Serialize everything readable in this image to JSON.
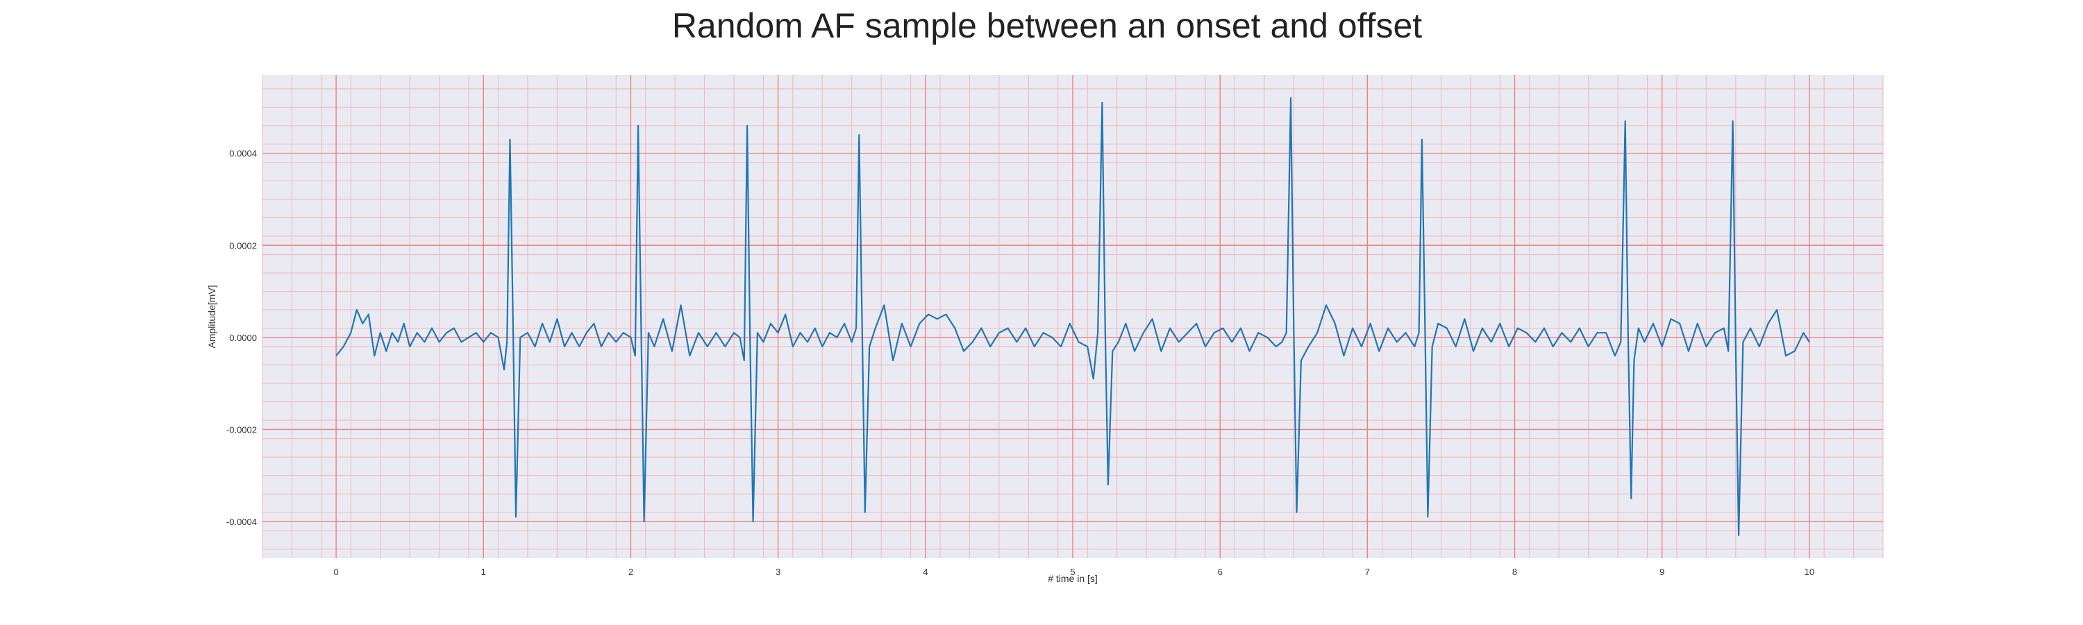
{
  "chart_data": {
    "type": "line",
    "title": "Random AF sample between an onset and offset",
    "xlabel": "# time in [s]",
    "ylabel": "Amplitude[mV]",
    "xlim": [
      -0.5,
      10.5
    ],
    "ylim": [
      -0.00048,
      0.00057
    ],
    "x_ticks": [
      0,
      1,
      2,
      3,
      4,
      5,
      6,
      7,
      8,
      9,
      10
    ],
    "x_tick_labels": [
      "0",
      "1",
      "2",
      "3",
      "4",
      "5",
      "6",
      "7",
      "8",
      "9",
      "10"
    ],
    "y_ticks": [
      0.0004,
      0.0002,
      0.0,
      -0.0002,
      -0.0004
    ],
    "y_tick_labels": [
      "0.0004",
      "0.0002",
      "0.0000",
      "-0.0002",
      "-0.0004"
    ],
    "grid": true,
    "legend": "none",
    "colors": {
      "line": "#1f77b4",
      "plot_background": "#eaeaf2",
      "major_grid": "#f08080",
      "minor_grid": "#f4b6bd"
    },
    "series": [
      {
        "x": [
          0.0,
          0.05,
          0.1,
          0.14,
          0.18,
          0.22,
          0.26,
          0.3,
          0.34,
          0.38,
          0.42,
          0.46,
          0.5,
          0.55,
          0.6,
          0.65,
          0.7,
          0.75,
          0.8,
          0.85,
          0.9,
          0.95,
          1.0,
          1.05,
          1.1,
          1.14,
          1.16,
          1.18,
          1.2,
          1.22,
          1.25,
          1.3,
          1.35,
          1.4,
          1.45,
          1.5,
          1.55,
          1.6,
          1.65,
          1.7,
          1.75,
          1.8,
          1.85,
          1.9,
          1.95,
          2.0,
          2.03,
          2.05,
          2.07,
          2.09,
          2.12,
          2.16,
          2.22,
          2.28,
          2.34,
          2.4,
          2.46,
          2.52,
          2.58,
          2.64,
          2.7,
          2.74,
          2.77,
          2.79,
          2.81,
          2.83,
          2.86,
          2.9,
          2.95,
          3.0,
          3.05,
          3.1,
          3.15,
          3.2,
          3.25,
          3.3,
          3.35,
          3.4,
          3.45,
          3.5,
          3.53,
          3.55,
          3.57,
          3.59,
          3.62,
          3.66,
          3.72,
          3.78,
          3.84,
          3.9,
          3.96,
          4.02,
          4.08,
          4.14,
          4.2,
          4.26,
          4.32,
          4.38,
          4.44,
          4.5,
          4.56,
          4.62,
          4.68,
          4.74,
          4.8,
          4.86,
          4.92,
          4.98,
          5.04,
          5.1,
          5.14,
          5.17,
          5.2,
          5.22,
          5.24,
          5.27,
          5.31,
          5.36,
          5.42,
          5.48,
          5.54,
          5.6,
          5.66,
          5.72,
          5.78,
          5.84,
          5.9,
          5.96,
          6.02,
          6.08,
          6.14,
          6.2,
          6.26,
          6.32,
          6.38,
          6.42,
          6.45,
          6.48,
          6.5,
          6.52,
          6.55,
          6.6,
          6.66,
          6.72,
          6.78,
          6.84,
          6.9,
          6.96,
          7.02,
          7.08,
          7.14,
          7.2,
          7.26,
          7.32,
          7.35,
          7.37,
          7.39,
          7.41,
          7.44,
          7.48,
          7.54,
          7.6,
          7.66,
          7.72,
          7.78,
          7.84,
          7.9,
          7.96,
          8.02,
          8.08,
          8.14,
          8.2,
          8.26,
          8.32,
          8.38,
          8.44,
          8.5,
          8.56,
          8.62,
          8.68,
          8.72,
          8.75,
          8.77,
          8.79,
          8.81,
          8.84,
          8.88,
          8.94,
          9.0,
          9.06,
          9.12,
          9.18,
          9.24,
          9.3,
          9.36,
          9.42,
          9.45,
          9.48,
          9.5,
          9.52,
          9.55,
          9.6,
          9.66,
          9.72,
          9.78,
          9.84,
          9.9,
          9.96,
          10.0
        ],
        "y": [
          -4e-05,
          -2e-05,
          1e-05,
          6e-05,
          3e-05,
          5e-05,
          -4e-05,
          1e-05,
          -3e-05,
          1e-05,
          -1e-05,
          3e-05,
          -2e-05,
          1e-05,
          -1e-05,
          2e-05,
          -1e-05,
          1e-05,
          2e-05,
          -1e-05,
          0.0,
          1e-05,
          -1e-05,
          1e-05,
          0.0,
          -7e-05,
          -1e-05,
          0.00043,
          5e-05,
          -0.00039,
          0.0,
          1e-05,
          -2e-05,
          3e-05,
          -1e-05,
          4e-05,
          -2e-05,
          1e-05,
          -2e-05,
          1e-05,
          3e-05,
          -2e-05,
          1e-05,
          -1e-05,
          1e-05,
          0.0,
          -4e-05,
          0.00046,
          3e-05,
          -0.0004,
          1e-05,
          -2e-05,
          4e-05,
          -3e-05,
          7e-05,
          -4e-05,
          1e-05,
          -2e-05,
          1e-05,
          -2e-05,
          1e-05,
          0.0,
          -5e-05,
          0.00046,
          -1e-05,
          -0.0004,
          1e-05,
          -1e-05,
          3e-05,
          1e-05,
          5e-05,
          -2e-05,
          1e-05,
          -1e-05,
          2e-05,
          -2e-05,
          1e-05,
          0.0,
          3e-05,
          -1e-05,
          2e-05,
          0.00044,
          3e-05,
          -0.00038,
          -2e-05,
          2e-05,
          7e-05,
          -5e-05,
          3e-05,
          -2e-05,
          3e-05,
          5e-05,
          4e-05,
          5e-05,
          2e-05,
          -3e-05,
          -1e-05,
          2e-05,
          -2e-05,
          1e-05,
          2e-05,
          -1e-05,
          2e-05,
          -2e-05,
          1e-05,
          0.0,
          -2e-05,
          3e-05,
          -1e-05,
          -2e-05,
          -9e-05,
          1e-05,
          0.00051,
          2e-05,
          -0.00032,
          -3e-05,
          -1e-05,
          3e-05,
          -3e-05,
          1e-05,
          4e-05,
          -3e-05,
          2e-05,
          -1e-05,
          1e-05,
          3e-05,
          -2e-05,
          1e-05,
          2e-05,
          -1e-05,
          2e-05,
          -3e-05,
          1e-05,
          0.0,
          -2e-05,
          -1e-05,
          1e-05,
          0.00052,
          2e-05,
          -0.00038,
          -5e-05,
          -2e-05,
          1e-05,
          7e-05,
          3e-05,
          -4e-05,
          2e-05,
          -2e-05,
          3e-05,
          -3e-05,
          2e-05,
          -1e-05,
          1e-05,
          -2e-05,
          1e-05,
          0.00043,
          5e-05,
          -0.00039,
          -2e-05,
          3e-05,
          2e-05,
          -2e-05,
          4e-05,
          -3e-05,
          2e-05,
          -1e-05,
          3e-05,
          -2e-05,
          2e-05,
          1e-05,
          -1e-05,
          2e-05,
          -2e-05,
          1e-05,
          -1e-05,
          2e-05,
          -2e-05,
          1e-05,
          1e-05,
          -4e-05,
          -1e-05,
          0.00047,
          0.0,
          -0.00035,
          -5e-05,
          2e-05,
          -1e-05,
          3e-05,
          -2e-05,
          4e-05,
          3e-05,
          -3e-05,
          3e-05,
          -2e-05,
          1e-05,
          2e-05,
          -3e-05,
          0.00047,
          -2e-05,
          -0.00043,
          -1e-05,
          2e-05,
          -2e-05,
          3e-05,
          6e-05,
          -4e-05,
          -3e-05,
          1e-05,
          -1e-05
        ]
      }
    ]
  }
}
